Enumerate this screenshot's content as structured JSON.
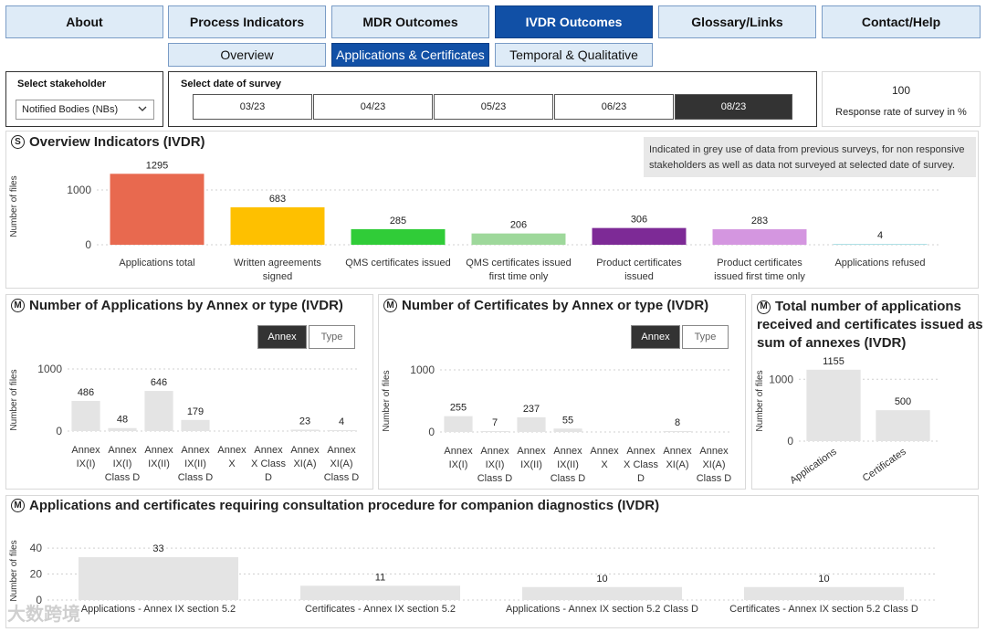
{
  "nav": {
    "tabs": [
      "About",
      "Process Indicators",
      "MDR Outcomes",
      "IVDR Outcomes",
      "Glossary/Links",
      "Contact/Help"
    ],
    "active_index": 3,
    "subtabs": [
      "Overview",
      "Applications & Certificates",
      "Temporal & Qualitative"
    ],
    "active_sub_index": 1
  },
  "filters": {
    "stakeholder_label": "Select stakeholder",
    "stakeholder_value": "Notified Bodies (NBs)",
    "date_label": "Select date of survey",
    "dates": [
      "03/23",
      "04/23",
      "05/23",
      "06/23",
      "08/23"
    ],
    "active_date_index": 4
  },
  "response": {
    "value": "100",
    "label": "Response rate of survey in %"
  },
  "colors": {
    "accent": "#1150a6",
    "bars": [
      "#e8694f",
      "#fec000",
      "#30cc38",
      "#9ed89b",
      "#7d2a96",
      "#d496e0",
      "#aee0e6"
    ],
    "grey_bar": "#e4e4e4"
  },
  "overview": {
    "icon_letter": "S",
    "title": "Overview Indicators (IVDR)",
    "note": "Indicated in grey use of data from previous surveys, for non responsive stakeholders as well as data not surveyed at selected date of survey.",
    "ylabel": "Number of files",
    "yticks": [
      "1000",
      "0"
    ]
  },
  "annex_apps": {
    "icon_letter": "M",
    "title": "Number of Applications by Annex or type (IVDR)",
    "toggle_on": "Annex",
    "toggle_off": "Type",
    "ylabel": "Number of files",
    "yticks": [
      "1000",
      "0"
    ]
  },
  "annex_certs": {
    "icon_letter": "M",
    "title": "Number of Certificates by Annex or type (IVDR)",
    "toggle_on": "Annex",
    "toggle_off": "Type",
    "ylabel": "Number of files",
    "yticks": [
      "1000",
      "0"
    ]
  },
  "totals": {
    "icon_letter": "M",
    "title_lines": [
      "Total number of applications",
      "received and certificates issued as",
      "sum of annexes (IVDR)"
    ],
    "ylabel": "Number of files",
    "yticks": [
      "1000",
      "0"
    ]
  },
  "companion": {
    "icon_letter": "M",
    "title": "Applications and certificates requiring consultation procedure for companion diagnostics (IVDR)",
    "ylabel": "Number of files",
    "yticks": [
      "40",
      "20",
      "0"
    ]
  },
  "watermark": "大数跨境",
  "chart_data": [
    {
      "id": "overview",
      "type": "bar",
      "title": "Overview Indicators (IVDR)",
      "ylabel": "Number of files",
      "ylim": [
        0,
        1400
      ],
      "categories": [
        [
          "Applications total"
        ],
        [
          "Written agreements",
          "signed"
        ],
        [
          "QMS certificates issued"
        ],
        [
          "QMS certificates issued",
          "first time only"
        ],
        [
          "Product certificates",
          "issued"
        ],
        [
          "Product certificates",
          "issued first time only"
        ],
        [
          "Applications refused"
        ]
      ],
      "values": [
        1295,
        683,
        285,
        206,
        306,
        283,
        4
      ]
    },
    {
      "id": "annex_apps",
      "type": "bar",
      "title": "Number of Applications by Annex or type (IVDR)",
      "ylabel": "Number of files",
      "ylim": [
        0,
        1000
      ],
      "categories": [
        [
          "Annex",
          "IX(I)"
        ],
        [
          "Annex",
          "IX(I)",
          "Class D"
        ],
        [
          "Annex",
          "IX(II)"
        ],
        [
          "Annex",
          "IX(II)",
          "Class D"
        ],
        [
          "Annex",
          "X"
        ],
        [
          "Annex",
          "X Class",
          "D"
        ],
        [
          "Annex",
          "XI(A)"
        ],
        [
          "Annex",
          "XI(A)",
          "Class D"
        ]
      ],
      "values": [
        486,
        48,
        646,
        179,
        null,
        null,
        23,
        4
      ]
    },
    {
      "id": "annex_certs",
      "type": "bar",
      "title": "Number of Certificates by Annex or type (IVDR)",
      "ylabel": "Number of files",
      "ylim": [
        0,
        1000
      ],
      "categories": [
        [
          "Annex",
          "IX(I)"
        ],
        [
          "Annex",
          "IX(I)",
          "Class D"
        ],
        [
          "Annex",
          "IX(II)"
        ],
        [
          "Annex",
          "IX(II)",
          "Class D"
        ],
        [
          "Annex",
          "X"
        ],
        [
          "Annex",
          "X Class",
          "D"
        ],
        [
          "Annex",
          "XI(A)"
        ],
        [
          "Annex",
          "XI(A)",
          "Class D"
        ]
      ],
      "values": [
        255,
        7,
        237,
        55,
        null,
        null,
        8,
        null
      ]
    },
    {
      "id": "totals",
      "type": "bar",
      "title": "Total number of applications received and certificates issued as sum of annexes (IVDR)",
      "ylabel": "Number of files",
      "ylim": [
        0,
        1300
      ],
      "categories": [
        [
          "Applications"
        ],
        [
          "Certificates"
        ]
      ],
      "values": [
        1155,
        500
      ]
    },
    {
      "id": "companion",
      "type": "bar",
      "title": "Applications and certificates requiring consultation procedure for companion diagnostics (IVDR)",
      "ylabel": "Number of files",
      "ylim": [
        0,
        45
      ],
      "categories": [
        [
          "Applications - Annex IX section 5.2"
        ],
        [
          "Certificates - Annex IX section 5.2"
        ],
        [
          "Applications - Annex IX section 5.2 Class D"
        ],
        [
          "Certificates - Annex IX section 5.2 Class D"
        ]
      ],
      "values": [
        33,
        11,
        10,
        10
      ]
    }
  ]
}
